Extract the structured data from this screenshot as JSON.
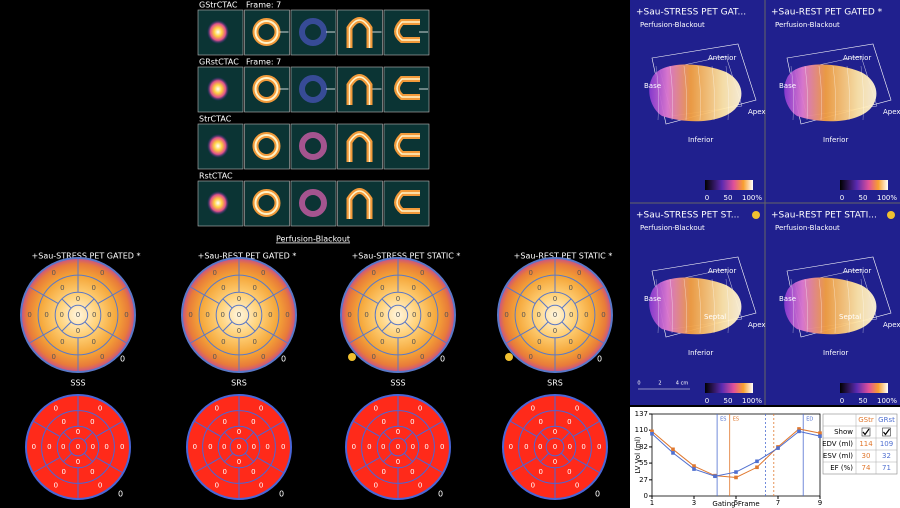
{
  "image_rows": [
    {
      "label": "GStrCTAC",
      "frame": "Frame: 7"
    },
    {
      "label": "GRstCTAC",
      "frame": "Frame: 7"
    },
    {
      "label": "StrCTAC"
    },
    {
      "label": "RstCTAC"
    }
  ],
  "perfusion_link": "Perfusion-Blackout",
  "polar_maps": [
    {
      "title": "+Sau-STRESS PET GATED *",
      "score": 0,
      "segments": [
        0,
        0,
        0,
        0,
        0,
        0,
        0,
        0,
        0,
        0,
        0,
        0,
        0,
        0,
        0,
        0,
        0
      ]
    },
    {
      "title": "+Sau-REST PET GATED *",
      "score": 0,
      "segments": [
        0,
        0,
        0,
        0,
        0,
        0,
        0,
        0,
        0,
        0,
        0,
        0,
        0,
        0,
        0,
        0,
        0
      ]
    },
    {
      "title": "+Sau-STRESS PET STATIC *",
      "score": 0,
      "segments": [
        0,
        0,
        0,
        0,
        0,
        0,
        0,
        0,
        0,
        0,
        0,
        0,
        0,
        0,
        0,
        0,
        0
      ]
    },
    {
      "title": "+Sau-REST PET STATIC *",
      "score": 0,
      "segments": [
        0,
        0,
        0,
        0,
        0,
        0,
        0,
        0,
        0,
        0,
        0,
        0,
        0,
        0,
        0,
        0,
        0
      ]
    }
  ],
  "score_maps": [
    {
      "title": "SSS",
      "total": 0,
      "segments": [
        0,
        0,
        0,
        0,
        0,
        0,
        0,
        0,
        0,
        0,
        0,
        0,
        0,
        0,
        0,
        0,
        0
      ]
    },
    {
      "title": "SRS",
      "total": 0,
      "segments": [
        0,
        0,
        0,
        0,
        0,
        0,
        0,
        0,
        0,
        0,
        0,
        0,
        0,
        0,
        0,
        0,
        0
      ]
    },
    {
      "title": "SSS",
      "total": 0,
      "segments": [
        0,
        0,
        0,
        0,
        0,
        0,
        0,
        0,
        0,
        0,
        0,
        0,
        0,
        0,
        0,
        0,
        0
      ]
    },
    {
      "title": "SRS",
      "total": 0,
      "segments": [
        0,
        0,
        0,
        0,
        0,
        0,
        0,
        0,
        0,
        0,
        0,
        0,
        0,
        0,
        0,
        0,
        0
      ]
    }
  ],
  "right_panels": [
    {
      "title": "+Sau-STRESS PET GAT...",
      "subtitle": "Perfusion-Blackout",
      "labels": {
        "anterior": "Anterior",
        "apex": "Apex",
        "inferior": "Inferior",
        "base": "Base"
      },
      "colorbar": [
        "0",
        "50",
        "100%"
      ]
    },
    {
      "title": "+Sau-REST PET GATED *",
      "subtitle": "Perfusion-Blackout",
      "labels": {
        "anterior": "Anterior",
        "apex": "Apex",
        "inferior": "Inferior",
        "base": "Base"
      },
      "colorbar": [
        "0",
        "50",
        "100%"
      ]
    },
    {
      "title": "+Sau-STRESS PET ST...",
      "subtitle": "Perfusion-Blackout",
      "labels": {
        "anterior": "Anterior",
        "apex": "Apex",
        "inferior": "Inferior",
        "base": "Base",
        "septal": "Septal"
      },
      "colorbar": [
        "0",
        "50",
        "100%"
      ],
      "scale": [
        "0",
        "2",
        "4 cm"
      ]
    },
    {
      "title": "+Sau-REST PET STATI...",
      "subtitle": "Perfusion-Blackout",
      "labels": {
        "anterior": "Anterior",
        "apex": "Apex",
        "inferior": "Inferior",
        "base": "Base",
        "septal": "Septal"
      },
      "colorbar": [
        "0",
        "50",
        "100%"
      ]
    }
  ],
  "chart_data": {
    "type": "line",
    "y_label": "LV Vol (ml)",
    "x_label": "Gating Frame",
    "x": [
      1,
      2,
      3,
      4,
      5,
      6,
      7,
      8,
      9
    ],
    "series": [
      {
        "name": "GStr",
        "color": "#e0782e",
        "values": [
          108,
          78,
          50,
          34,
          31,
          48,
          82,
          112,
          105
        ]
      },
      {
        "name": "GRst",
        "color": "#4f6fd0",
        "values": [
          104,
          72,
          45,
          33,
          40,
          58,
          80,
          108,
          100
        ]
      }
    ],
    "markers": [
      {
        "x": 4.1,
        "label": "ES",
        "color": "#4f6fd0"
      },
      {
        "x": 4.7,
        "label": "ES",
        "color": "#e0782e"
      },
      {
        "x": 6.4,
        "color": "#4f6fd0"
      },
      {
        "x": 6.8,
        "color": "#e0782e"
      },
      {
        "x": 8.2,
        "label": "ED",
        "color": "#4f6fd0"
      }
    ],
    "xlim": [
      1,
      9
    ],
    "ylim": [
      0,
      137
    ],
    "xticks": [
      1,
      3,
      5,
      7,
      9
    ],
    "yticks": [
      0,
      27,
      55,
      82,
      110,
      137
    ]
  },
  "results_table": {
    "rows": [
      {
        "label": "Show"
      },
      {
        "label": "EDV (ml)",
        "values": [
          114,
          109
        ]
      },
      {
        "label": "ESV (ml)",
        "values": [
          30,
          32
        ]
      },
      {
        "label": "EF (%)",
        "values": [
          74,
          71
        ]
      }
    ]
  }
}
